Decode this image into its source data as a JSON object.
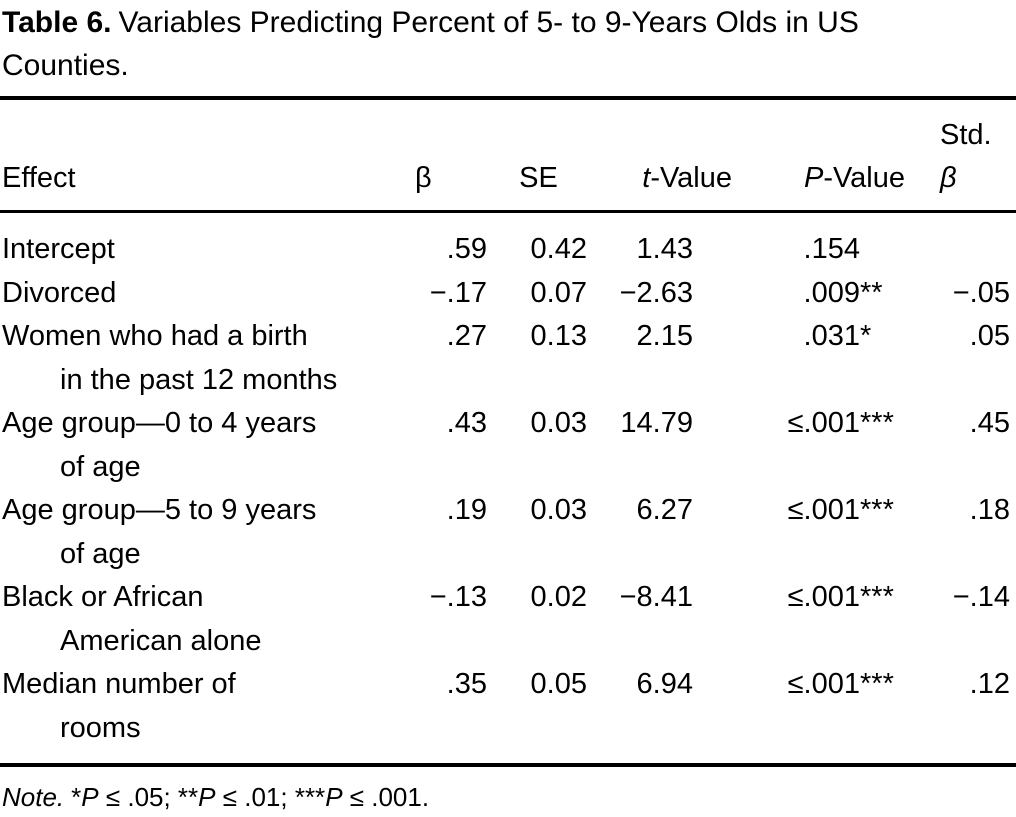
{
  "title": {
    "label": "Table 6.",
    "lines": [
      "Variables Predicting Percent of 5- to 9-Years Olds in US",
      "Counties."
    ]
  },
  "table": {
    "header": {
      "effect": "Effect",
      "beta": "β",
      "se": "SE",
      "t_prefix": "t",
      "t_suffix": "-Value",
      "p_prefix": "P",
      "p_suffix": "-Value",
      "std_line1": "Std.",
      "std_beta": "β"
    },
    "rows": [
      {
        "effect_lines": [
          "Intercept"
        ],
        "beta": ".59",
        "se": "0.42",
        "t": "1.43",
        "p": ".154",
        "p_stars": "",
        "std_beta": ""
      },
      {
        "effect_lines": [
          "Divorced"
        ],
        "beta": "−.17",
        "se": "0.07",
        "t": "−2.63",
        "p": ".009",
        "p_stars": "**",
        "std_beta": "−.05"
      },
      {
        "effect_lines": [
          "Women who had a birth",
          "in the past 12 months"
        ],
        "beta": ".27",
        "se": "0.13",
        "t": "2.15",
        "p": ".031",
        "p_stars": "*",
        "std_beta": ".05"
      },
      {
        "effect_lines": [
          "Age group—0 to 4 years",
          "of age"
        ],
        "beta": ".43",
        "se": "0.03",
        "t": "14.79",
        "p": "≤.001",
        "p_stars": "***",
        "std_beta": ".45"
      },
      {
        "effect_lines": [
          "Age group—5 to 9 years",
          "of age"
        ],
        "beta": ".19",
        "se": "0.03",
        "t": "6.27",
        "p": "≤.001",
        "p_stars": "***",
        "std_beta": ".18"
      },
      {
        "effect_lines": [
          "Black or African",
          "American alone"
        ],
        "beta": "−.13",
        "se": "0.02",
        "t": "−8.41",
        "p": "≤.001",
        "p_stars": "***",
        "std_beta": "−.14"
      },
      {
        "effect_lines": [
          "Median number of",
          "rooms"
        ],
        "beta": ".35",
        "se": "0.05",
        "t": "6.94",
        "p": "≤.001",
        "p_stars": "***",
        "std_beta": ".12"
      }
    ]
  },
  "note": {
    "label": "Note.",
    "segments": [
      {
        "text": "*"
      },
      {
        "text": "P",
        "italic": true
      },
      {
        "text": " ≤ .05; **"
      },
      {
        "text": "P",
        "italic": true
      },
      {
        "text": " ≤ .01; ***"
      },
      {
        "text": "P",
        "italic": true
      },
      {
        "text": " ≤ .001."
      }
    ]
  }
}
